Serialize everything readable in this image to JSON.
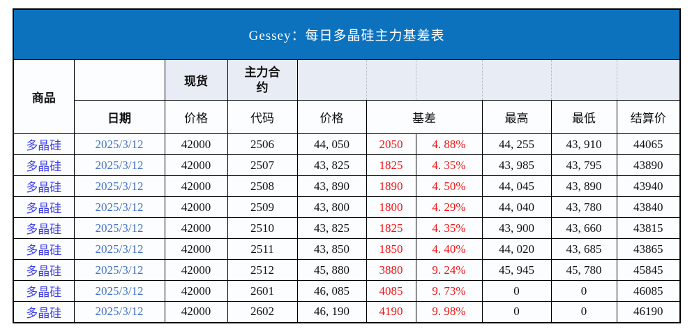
{
  "title": "Gessey：每日多晶硅主力基差表",
  "header": {
    "commodity": "商品",
    "date": "日期",
    "spot": "现货",
    "main_contract": "主力合约",
    "spot_price": "价格",
    "code": "代码",
    "price": "价格",
    "basis": "基差",
    "high": "最高",
    "low": "最低",
    "settlement": "结算价"
  },
  "colors": {
    "title_bg": "#0d72be",
    "title_text": "#ffffff",
    "header_shaded_bg": "#e7ecf5",
    "commodity_text": "#4040e6",
    "date_text": "#4472c4",
    "basis_text": "#f01414",
    "grid_line": "#000000"
  },
  "rows": [
    {
      "commodity": "多晶硅",
      "date": "2025/3/12",
      "spot_price": "42000",
      "code": "2506",
      "price": "44, 050",
      "basis": "2050",
      "basis_pct": "4. 88%",
      "high": "44, 255",
      "low": "43, 910",
      "settlement": "44065"
    },
    {
      "commodity": "多晶硅",
      "date": "2025/3/12",
      "spot_price": "42000",
      "code": "2507",
      "price": "43, 825",
      "basis": "1825",
      "basis_pct": "4. 35%",
      "high": "43, 985",
      "low": "43, 795",
      "settlement": "43890"
    },
    {
      "commodity": "多晶硅",
      "date": "2025/3/12",
      "spot_price": "42000",
      "code": "2508",
      "price": "43, 890",
      "basis": "1890",
      "basis_pct": "4. 50%",
      "high": "44, 045",
      "low": "43, 890",
      "settlement": "43940"
    },
    {
      "commodity": "多晶硅",
      "date": "2025/3/12",
      "spot_price": "42000",
      "code": "2509",
      "price": "43, 800",
      "basis": "1800",
      "basis_pct": "4. 29%",
      "high": "44, 040",
      "low": "43, 780",
      "settlement": "43840"
    },
    {
      "commodity": "多晶硅",
      "date": "2025/3/12",
      "spot_price": "42000",
      "code": "2510",
      "price": "43, 825",
      "basis": "1825",
      "basis_pct": "4. 35%",
      "high": "43, 900",
      "low": "43, 660",
      "settlement": "43815"
    },
    {
      "commodity": "多晶硅",
      "date": "2025/3/12",
      "spot_price": "42000",
      "code": "2511",
      "price": "43, 850",
      "basis": "1850",
      "basis_pct": "4. 40%",
      "high": "44, 020",
      "low": "43, 685",
      "settlement": "43865"
    },
    {
      "commodity": "多晶硅",
      "date": "2025/3/12",
      "spot_price": "42000",
      "code": "2512",
      "price": "45, 880",
      "basis": "3880",
      "basis_pct": "9. 24%",
      "high": "45, 945",
      "low": "45, 780",
      "settlement": "45845"
    },
    {
      "commodity": "多晶硅",
      "date": "2025/3/12",
      "spot_price": "42000",
      "code": "2601",
      "price": "46, 085",
      "basis": "4085",
      "basis_pct": "9. 73%",
      "high": "0",
      "low": "0",
      "settlement": "46085"
    },
    {
      "commodity": "多晶硅",
      "date": "2025/3/12",
      "spot_price": "42000",
      "code": "2602",
      "price": "46, 190",
      "basis": "4190",
      "basis_pct": "9. 98%",
      "high": "0",
      "low": "0",
      "settlement": "46190"
    }
  ]
}
